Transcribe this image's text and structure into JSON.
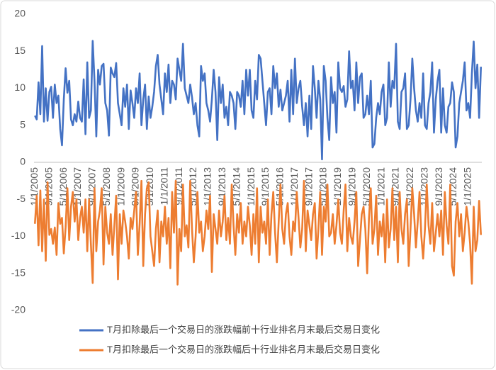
{
  "chart_data": {
    "type": "line",
    "categories": [
      "1/1/2005",
      null,
      null,
      null,
      null,
      null,
      null,
      null,
      "9/1/2005",
      null,
      null,
      null,
      null,
      null,
      null,
      null,
      "5/1/2006",
      null,
      null,
      null,
      null,
      null,
      null,
      null,
      "1/1/2007",
      null,
      null,
      null,
      null,
      null,
      null,
      null,
      "9/1/2007",
      null,
      null,
      null,
      null,
      null,
      null,
      null,
      "5/1/2008",
      null,
      null,
      null,
      null,
      null,
      null,
      null,
      "1/1/2009",
      null,
      null,
      null,
      null,
      null,
      null,
      null,
      "9/1/2009",
      null,
      null,
      null,
      null,
      null,
      null,
      null,
      "5/1/2010",
      null,
      null,
      null,
      null,
      null,
      null,
      null,
      "1/1/2011",
      null,
      null,
      null,
      null,
      null,
      null,
      null,
      "9/1/2011",
      null,
      null,
      null,
      null,
      null,
      null,
      null,
      "5/1/2012",
      null,
      null,
      null,
      null,
      null,
      null,
      null,
      "1/1/2013",
      null,
      null,
      null,
      null,
      null,
      null,
      null,
      "9/1/2013",
      null,
      null,
      null,
      null,
      null,
      null,
      null,
      "5/1/2014",
      null,
      null,
      null,
      null,
      null,
      null,
      null,
      "1/1/2015",
      null,
      null,
      null,
      null,
      null,
      null,
      null,
      "9/1/2015",
      null,
      null,
      null,
      null,
      null,
      null,
      null,
      "5/1/2016",
      null,
      null,
      null,
      null,
      null,
      null,
      null,
      "1/1/2017",
      null,
      null,
      null,
      null,
      null,
      null,
      null,
      "9/1/2017",
      null,
      null,
      null,
      null,
      null,
      null,
      null,
      "5/1/2018",
      null,
      null,
      null,
      null,
      null,
      null,
      null,
      "1/1/2019",
      null,
      null,
      null,
      null,
      null,
      null,
      null,
      "9/1/2019",
      null,
      null,
      null,
      null,
      null,
      null,
      null,
      "5/1/2020",
      null,
      null,
      null,
      null,
      null,
      null,
      null,
      "1/1/2021",
      null,
      null,
      null,
      null,
      null,
      null,
      null,
      "9/1/2021",
      null,
      null,
      null,
      null,
      null,
      null,
      null,
      "5/1/2022",
      null,
      null,
      null,
      null,
      null,
      null,
      null,
      "1/1/2023",
      null,
      null,
      null,
      null,
      null,
      null,
      null,
      "9/1/2023",
      null,
      null,
      null,
      null,
      null,
      null,
      null,
      "5/1/2024",
      null,
      null,
      null,
      null,
      null,
      null,
      null,
      "1/1/2025",
      null,
      null,
      null,
      null,
      null,
      null,
      null
    ],
    "series": [
      {
        "name": "T月扣除最后一个交易日的涨跌幅前十行业排名月末最后交易日变化",
        "color": "#4472c4",
        "values": [
          6.3,
          5.8,
          10.8,
          6.5,
          15.7,
          5.5,
          10,
          5.6,
          9.5,
          10.2,
          6,
          10.5,
          8,
          9,
          4.5,
          2.3,
          8.5,
          12.7,
          9.4,
          11,
          5.8,
          5,
          6.5,
          5.5,
          8.2,
          6,
          5.5,
          11.2,
          3.8,
          13.5,
          6,
          7,
          16.4,
          11,
          3.5,
          12.5,
          10.5,
          13,
          13.3,
          8,
          7,
          3.6,
          12.8,
          12,
          11.5,
          13.4,
          8,
          6.5,
          5,
          10,
          7.5,
          10.5,
          4.5,
          9.7,
          8,
          6,
          10,
          8,
          12,
          5,
          8.5,
          10.5,
          4.5,
          8.9,
          6,
          7.5,
          9.5,
          13,
          14.5,
          10.5,
          8.5,
          6.5,
          12,
          9.5,
          13.2,
          8,
          11,
          10.5,
          8.5,
          14,
          12.5,
          11,
          16,
          10,
          9,
          8,
          10.5,
          8.8,
          6.5,
          8,
          5,
          3.5,
          13,
          11,
          12,
          8,
          7,
          5.5,
          8.5,
          12.5,
          9.5,
          3,
          11.5,
          8,
          10.5,
          6,
          7.5,
          5,
          9.5,
          9,
          8,
          4.5,
          9.5,
          9,
          7.5,
          11,
          6.5,
          12.5,
          9,
          12.5,
          7,
          6,
          11,
          8.5,
          14.5,
          14,
          11,
          8,
          5,
          9.5,
          10,
          6.5,
          13,
          10,
          12,
          7.5,
          9.8,
          7,
          8,
          9,
          11,
          5.5,
          12.5,
          6.5,
          14,
          8,
          10,
          11,
          7.5,
          5,
          8,
          3.5,
          9,
          4.5,
          13,
          10,
          6,
          11,
          8.5,
          0.4,
          13,
          11,
          6,
          3,
          11.5,
          8,
          9.5,
          4,
          13.5,
          10,
          9.5,
          10.3,
          7.5,
          8.5,
          15,
          10,
          11,
          7,
          13.5,
          8,
          11.5,
          12,
          6,
          6.5,
          9,
          6.5,
          11,
          2,
          2.5,
          6,
          8,
          6.5,
          9.5,
          10.5,
          5,
          6,
          13.5,
          7.5,
          11,
          10,
          16,
          5.5,
          4.5,
          9.5,
          10,
          12,
          4.5,
          5,
          8.5,
          14,
          10,
          7,
          5.5,
          8,
          6,
          12,
          5,
          4.5,
          8,
          9.5,
          13.5,
          4,
          8.5,
          11,
          12.5,
          4,
          10,
          5,
          4,
          7.5,
          8,
          10.8,
          9.5,
          2,
          3.5,
          8,
          9.5,
          11,
          13.5,
          7,
          8,
          6,
          12,
          16.3,
          10,
          13.2,
          6,
          12.9
        ]
      },
      {
        "name": "T月扣除最后一个交易日的涨跌幅后十行业排名月末最后交易日变化",
        "color": "#ed7d31",
        "values": [
          -8.3,
          -4.5,
          -11.2,
          -3.8,
          -12,
          -5,
          -13.3,
          -2.7,
          -9.8,
          -9,
          -11,
          -8.8,
          -12.5,
          -5.5,
          -8.3,
          -7.5,
          -12.3,
          -8.8,
          -3.5,
          -10.5,
          -6,
          -4,
          -8,
          -5,
          -10.5,
          -7.5,
          -6,
          -9.5,
          -5,
          -12,
          -5,
          -11,
          -16.3,
          -3.5,
          -12,
          -8,
          -6.5,
          -3.5,
          -13.8,
          -6,
          -9.5,
          -11,
          -7,
          -12.5,
          -8.5,
          -4.5,
          -15.8,
          -7,
          -11,
          -6.5,
          -8,
          -10,
          -13,
          -7.5,
          -9,
          -6.5,
          -4,
          -12.5,
          -8.3,
          -2.5,
          -14,
          -7,
          -3.5,
          -2.7,
          -10,
          -12,
          -14,
          -9,
          -6.5,
          -13.5,
          -8,
          -10,
          -6,
          -11,
          -7.5,
          -14.3,
          -4,
          -9.5,
          -2.5,
          -16.5,
          -9,
          -12,
          -3,
          -10,
          -8.5,
          -11.5,
          -2.5,
          -9,
          -13.5,
          -10,
          -4,
          -9.5,
          -8,
          -12,
          -10,
          -6.5,
          -9,
          -4.5,
          -14.8,
          -7,
          -9,
          -11,
          -6.5,
          -10,
          -8,
          -4.5,
          -10.5,
          -7.5,
          -11,
          -3,
          -8.5,
          -12.5,
          -7,
          -9.5,
          -5.5,
          -11,
          -8,
          -10,
          -6,
          -8.5,
          -12.5,
          -7,
          -11,
          -3.5,
          -13.5,
          -6,
          -9.5,
          -8,
          -11,
          -5,
          -12.5,
          -7,
          -4,
          -9.5,
          -13.5,
          -8,
          -3,
          -9,
          -11,
          -7,
          -5.5,
          -10,
          -12.5,
          -8,
          -9.3,
          -4,
          -7.5,
          -11.5,
          -9,
          -2.5,
          -12,
          -6.5,
          -8.5,
          -10.5,
          -7,
          -5.5,
          -13,
          -9,
          -4,
          -12.5,
          -6,
          -8,
          -3,
          -10,
          -9.5,
          -7,
          -11,
          -8.5,
          -5,
          -9.5,
          -11,
          -6.5,
          -3,
          -12,
          -7.5,
          -10,
          -11,
          -8,
          -4,
          -14,
          -10.5,
          -7,
          -6,
          -9,
          -15,
          -7.5,
          -3.5,
          -11,
          -9,
          -4.5,
          -12.5,
          -8,
          -10,
          -7,
          -13.5,
          -5,
          -11.5,
          -9,
          -3.5,
          -10.5,
          -6,
          -13.5,
          -4,
          -9,
          -11,
          -7,
          -5,
          -14,
          -9,
          -3.5,
          -7,
          -11.5,
          -8,
          -4,
          -10,
          -13,
          -9,
          -3,
          -8.5,
          -11,
          -5.5,
          -12,
          -9.5,
          -7,
          -10,
          -6.5,
          -12.5,
          -4,
          -8.5,
          -11,
          -3,
          -14,
          -15.3,
          -8,
          -5.5,
          -10,
          -7,
          -12,
          -9.5,
          -6,
          -8,
          -11,
          -16.4,
          -6,
          -12,
          -10.5,
          -5.2,
          -9.8
        ]
      }
    ],
    "ylim": [
      -20,
      20
    ],
    "yticks": [
      -20,
      -15,
      -10,
      -5,
      0,
      5,
      10,
      15,
      20
    ],
    "legend": "bottom"
  }
}
